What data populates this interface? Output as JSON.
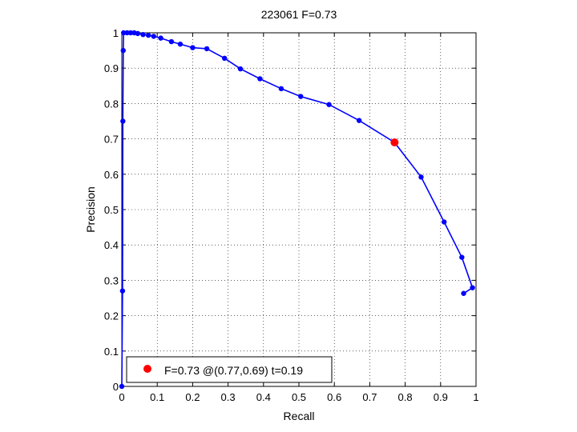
{
  "chart_data": {
    "type": "line",
    "title": "223061 F=0.73",
    "xlabel": "Recall",
    "ylabel": "Precision",
    "xlim": [
      0,
      1
    ],
    "ylim": [
      0,
      1
    ],
    "xticks": [
      "0",
      "0.1",
      "0.2",
      "0.3",
      "0.4",
      "0.5",
      "0.6",
      "0.7",
      "0.8",
      "0.9",
      "1"
    ],
    "yticks": [
      "0",
      "0.1",
      "0.2",
      "0.3",
      "0.4",
      "0.5",
      "0.6",
      "0.7",
      "0.8",
      "0.9",
      "1"
    ],
    "grid": true,
    "legend_position": "bottom-left",
    "series": [
      {
        "color": "#0000ff",
        "marker": "dot",
        "x": [
          0.0,
          0.002,
          0.003,
          0.004,
          0.005,
          0.015,
          0.025,
          0.035,
          0.045,
          0.06,
          0.075,
          0.09,
          0.11,
          0.14,
          0.165,
          0.2,
          0.24,
          0.29,
          0.335,
          0.39,
          0.45,
          0.505,
          0.585,
          0.67,
          0.77,
          0.845,
          0.91,
          0.96,
          0.99,
          0.965
        ],
        "y": [
          0.0,
          0.27,
          0.75,
          0.95,
          1.0,
          1.0,
          1.0,
          1.0,
          0.998,
          0.995,
          0.993,
          0.99,
          0.985,
          0.975,
          0.968,
          0.958,
          0.955,
          0.928,
          0.898,
          0.87,
          0.842,
          0.82,
          0.797,
          0.752,
          0.69,
          0.592,
          0.465,
          0.365,
          0.279,
          0.263
        ]
      }
    ],
    "highlight_point": {
      "x": 0.77,
      "y": 0.69,
      "color": "#ff0000"
    },
    "legend": {
      "text": "F=0.73 @(0.77,0.69) t=0.19",
      "marker_color": "#ff0000"
    }
  }
}
